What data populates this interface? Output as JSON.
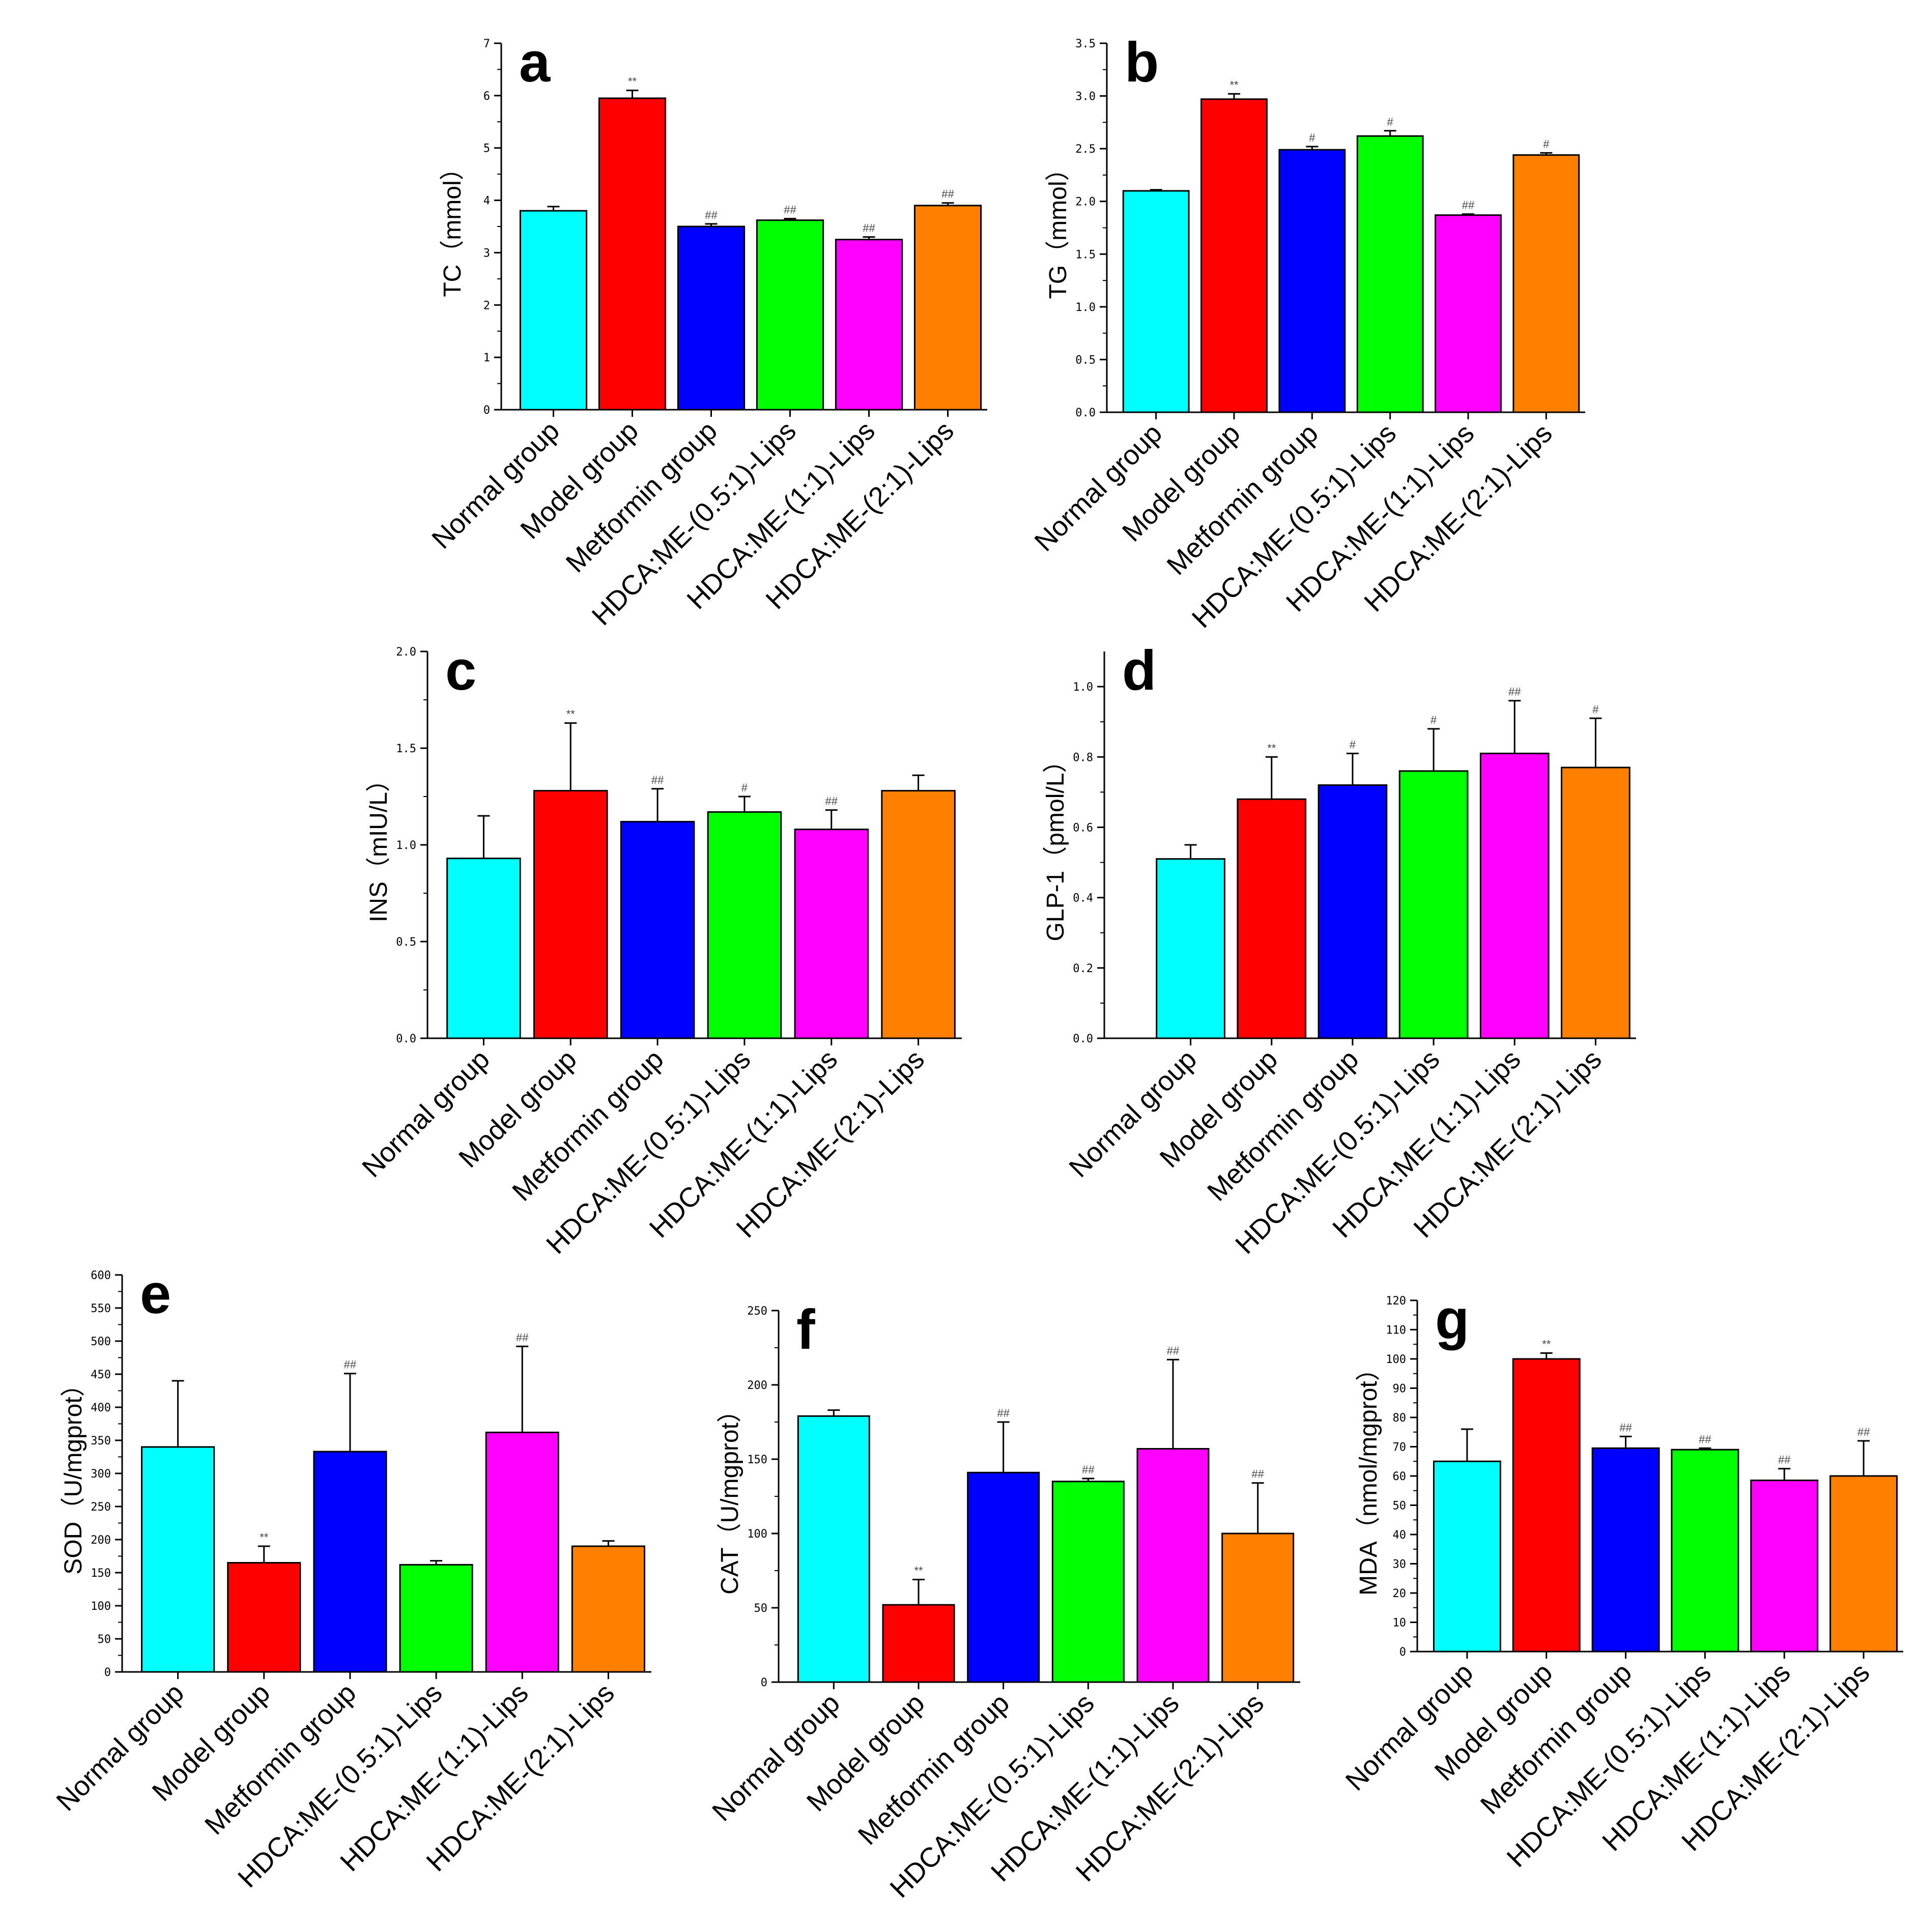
{
  "chart_data": [
    {
      "type": "bar",
      "panel_label": "a",
      "ylabel": "TC（mmol）",
      "ylim": [
        0,
        7
      ],
      "yticks": [
        "0",
        "1",
        "2",
        "3",
        "4",
        "5",
        "6",
        "7"
      ],
      "categories": [
        "Normal group",
        "Model group",
        "Metformin group",
        "HDCA:ME-(0.5:1)-Lips",
        "HDCA:ME-(1:1)-Lips",
        "HDCA:ME-(2:1)-Lips"
      ],
      "values": [
        3.8,
        5.95,
        3.5,
        3.62,
        3.25,
        3.9
      ],
      "errors": [
        0.08,
        0.15,
        0.05,
        0.03,
        0.05,
        0.05
      ],
      "significance": [
        "",
        "**",
        "##",
        "##",
        "##",
        "##"
      ],
      "colors": [
        "#00FFFF",
        "#FF0000",
        "#0000FF",
        "#00FF00",
        "#FF00FF",
        "#FF8000"
      ]
    },
    {
      "type": "bar",
      "panel_label": "b",
      "ylabel": "TG（mmol）",
      "ylim": [
        0,
        3.5
      ],
      "yticks": [
        "0.0",
        "0.5",
        "1.0",
        "1.5",
        "2.0",
        "2.5",
        "3.0",
        "3.5"
      ],
      "categories": [
        "Normal group",
        "Model group",
        "Metformin group",
        "HDCA:ME-(0.5:1)-Lips",
        "HDCA:ME-(1:1)-Lips",
        "HDCA:ME-(2:1)-Lips"
      ],
      "values": [
        2.1,
        2.97,
        2.49,
        2.62,
        1.87,
        2.44
      ],
      "errors": [
        0.01,
        0.05,
        0.03,
        0.05,
        0.01,
        0.02
      ],
      "significance": [
        "",
        "**",
        "#",
        "#",
        "##",
        "#"
      ],
      "colors": [
        "#00FFFF",
        "#FF0000",
        "#0000FF",
        "#00FF00",
        "#FF00FF",
        "#FF8000"
      ]
    },
    {
      "type": "bar",
      "panel_label": "c",
      "ylabel": "INS（mIU/L）",
      "ylim": [
        0,
        2.0
      ],
      "yticks": [
        "0.0",
        "0.5",
        "1.0",
        "1.5",
        "2.0"
      ],
      "categories": [
        "Normal group",
        "Model group",
        "Metformin group",
        "HDCA:ME-(0.5:1)-Lips",
        "HDCA:ME-(1:1)-Lips",
        "HDCA:ME-(2:1)-Lips"
      ],
      "values": [
        0.93,
        1.28,
        1.12,
        1.17,
        1.08,
        1.28
      ],
      "errors": [
        0.22,
        0.35,
        0.17,
        0.08,
        0.1,
        0.08
      ],
      "significance": [
        "",
        "**",
        "##",
        "#",
        "##",
        ""
      ],
      "colors": [
        "#00FFFF",
        "#FF0000",
        "#0000FF",
        "#00FF00",
        "#FF00FF",
        "#FF8000"
      ]
    },
    {
      "type": "bar",
      "panel_label": "d",
      "ylabel": "GLP-1（pmol/L）",
      "ylim": [
        0,
        1.1
      ],
      "yticks": [
        "0.0",
        "0.2",
        "0.4",
        "0.6",
        "0.8",
        "1.0"
      ],
      "categories": [
        "Normal group",
        "Model group",
        "Metformin group",
        "HDCA:ME-(0.5:1)-Lips",
        "HDCA:ME-(1:1)-Lips",
        "HDCA:ME-(2:1)-Lips"
      ],
      "values": [
        0.51,
        0.68,
        0.72,
        0.76,
        0.81,
        0.77
      ],
      "errors": [
        0.04,
        0.12,
        0.09,
        0.12,
        0.15,
        0.14
      ],
      "significance": [
        "",
        "**",
        "#",
        "#",
        "##",
        "#"
      ],
      "colors": [
        "#00FFFF",
        "#FF0000",
        "#0000FF",
        "#00FF00",
        "#FF00FF",
        "#FF8000"
      ]
    },
    {
      "type": "bar",
      "panel_label": "e",
      "ylabel": "SOD（U/mgprot）",
      "ylim": [
        0,
        600
      ],
      "yticks": [
        "0",
        "50",
        "100",
        "150",
        "200",
        "250",
        "300",
        "350",
        "400",
        "450",
        "500",
        "550",
        "600"
      ],
      "categories": [
        "Normal group",
        "Model group",
        "Metformin group",
        "HDCA:ME-(0.5:1)-Lips",
        "HDCA:ME-(1:1)-Lips",
        "HDCA:ME-(2:1)-Lips"
      ],
      "values": [
        340,
        165,
        333,
        162,
        362,
        190
      ],
      "errors": [
        100,
        25,
        118,
        6,
        130,
        8
      ],
      "significance": [
        "",
        "**",
        "##",
        "",
        "##",
        ""
      ],
      "colors": [
        "#00FFFF",
        "#FF0000",
        "#0000FF",
        "#00FF00",
        "#FF00FF",
        "#FF8000"
      ]
    },
    {
      "type": "bar",
      "panel_label": "f",
      "ylabel": "CAT（U/mgprot）",
      "ylim": [
        0,
        250
      ],
      "yticks": [
        "0",
        "50",
        "100",
        "150",
        "200",
        "250"
      ],
      "categories": [
        "Normal group",
        "Model group",
        "Metformin group",
        "HDCA:ME-(0.5:1)-Lips",
        "HDCA:ME-(1:1)-Lips",
        "HDCA:ME-(2:1)-Lips"
      ],
      "values": [
        179,
        52,
        141,
        135,
        157,
        100
      ],
      "errors": [
        4,
        17,
        34,
        2,
        60,
        34
      ],
      "significance": [
        "",
        "**",
        "##",
        "##",
        "##",
        "##"
      ],
      "colors": [
        "#00FFFF",
        "#FF0000",
        "#0000FF",
        "#00FF00",
        "#FF00FF",
        "#FF8000"
      ]
    },
    {
      "type": "bar",
      "panel_label": "g",
      "ylabel": "MDA（nmol/mgprot）",
      "ylim": [
        0,
        120
      ],
      "yticks": [
        "0",
        "10",
        "20",
        "30",
        "40",
        "50",
        "60",
        "70",
        "80",
        "90",
        "100",
        "110",
        "120"
      ],
      "categories": [
        "Normal group",
        "Model group",
        "Metformin group",
        "HDCA:ME-(0.5:1)-Lips",
        "HDCA:ME-(1:1)-Lips",
        "HDCA:ME-(2:1)-Lips"
      ],
      "values": [
        65,
        100,
        69.5,
        69,
        58.5,
        60
      ],
      "errors": [
        11,
        2,
        4,
        0.5,
        4,
        12
      ],
      "significance": [
        "",
        "**",
        "##",
        "##",
        "##",
        "##"
      ],
      "colors": [
        "#00FFFF",
        "#FF0000",
        "#0000FF",
        "#00FF00",
        "#FF00FF",
        "#FF8000"
      ]
    }
  ]
}
